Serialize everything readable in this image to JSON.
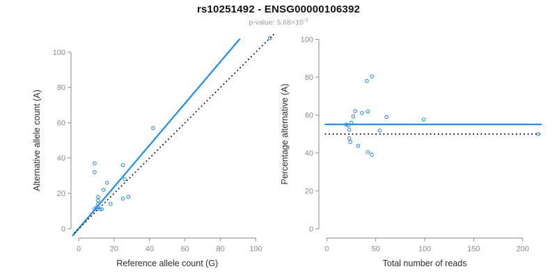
{
  "header": {
    "title": "rs10251492 - ENSG00000106392",
    "pvalue_prefix": "p-value: 5.68×10",
    "pvalue_exponent": "-3"
  },
  "colors": {
    "accent_blue": "#1E90FF",
    "point_blue": "#2E8FE8",
    "dotted_black": "#000000",
    "axis_gray": "#8c8c8c",
    "tick_text_gray": "#8a8a8a",
    "axis_title_dark": "#2e2e2e"
  },
  "chart_data": [
    {
      "type": "scatter",
      "name": "left-scatter-plot",
      "title": "",
      "xlabel": "Reference allele count (G)",
      "ylabel": "Alternative allele count (A)",
      "xticks": [
        0,
        20,
        40,
        60,
        80,
        100
      ],
      "yticks": [
        0,
        20,
        40,
        60,
        80,
        100
      ],
      "xlim": [
        -4.5,
        112.5
      ],
      "ylim": [
        -4.5,
        112.5
      ],
      "grid": false,
      "points": [
        [
          9,
          11
        ],
        [
          9,
          32
        ],
        [
          9,
          37
        ],
        [
          10,
          12
        ],
        [
          11,
          12
        ],
        [
          11,
          14
        ],
        [
          11,
          16
        ],
        [
          11,
          18
        ],
        [
          12,
          11
        ],
        [
          13,
          11
        ],
        [
          14,
          22
        ],
        [
          16,
          26
        ],
        [
          18,
          14
        ],
        [
          25,
          17
        ],
        [
          25,
          36
        ],
        [
          26,
          28
        ],
        [
          28,
          18
        ],
        [
          42,
          57
        ],
        [
          108,
          108
        ]
      ],
      "lines": [
        {
          "name": "fit-line",
          "style": "solid",
          "color": "accent",
          "x1": -3.5,
          "y1": -4.1,
          "x2": 91,
          "y2": 107.6
        },
        {
          "name": "identity-line",
          "style": "dotted",
          "color": "black",
          "x1": -2.5,
          "y1": -2.5,
          "x2": 110.5,
          "y2": 110.5
        }
      ]
    },
    {
      "type": "scatter",
      "name": "right-scatter-plot",
      "title": "",
      "xlabel": "Total number of reads",
      "ylabel": "Percentage alternative (A)",
      "xticks": [
        0,
        50,
        100,
        150,
        200
      ],
      "yticks": [
        0,
        20,
        40,
        60,
        80,
        100
      ],
      "xlim": [
        -8.6,
        224.6
      ],
      "ylim": [
        -4,
        104
      ],
      "grid": false,
      "points": [
        [
          20,
          55
        ],
        [
          41,
          78
        ],
        [
          46,
          80.4
        ],
        [
          22,
          54.5
        ],
        [
          23,
          52.2
        ],
        [
          25,
          56
        ],
        [
          27,
          59.3
        ],
        [
          29,
          62.1
        ],
        [
          23,
          47.8
        ],
        [
          24,
          45.8
        ],
        [
          36,
          61.1
        ],
        [
          42,
          61.9
        ],
        [
          32,
          43.8
        ],
        [
          42,
          40.5
        ],
        [
          61,
          59
        ],
        [
          54,
          51.9
        ],
        [
          46,
          39.1
        ],
        [
          99,
          57.6
        ],
        [
          216,
          50
        ]
      ],
      "lines": [
        {
          "name": "mean-line",
          "style": "solid",
          "color": "accent",
          "x1": -2,
          "y1": 55.1,
          "x2": 219.5,
          "y2": 55.1
        },
        {
          "name": "null-line",
          "style": "dotted",
          "color": "black",
          "x1": -2,
          "y1": 50,
          "x2": 219.5,
          "y2": 50
        }
      ]
    }
  ]
}
